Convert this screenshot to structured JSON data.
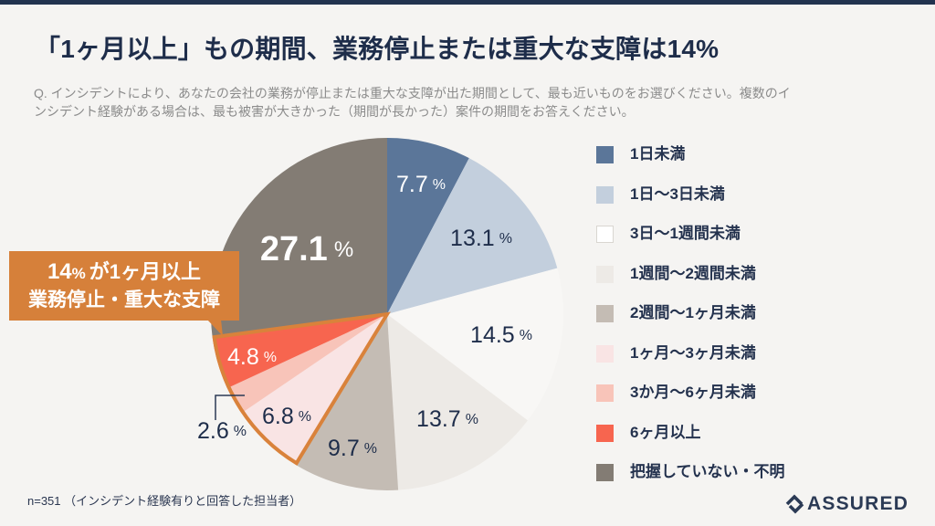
{
  "header": {
    "title": "「1ヶ月以上」もの期間、業務停止または重大な支障は14%",
    "question_lines": [
      "Q. インシデントにより、あなたの会社の業務が停止または重大な支障が出た期間として、最も近いものをお選びください。複数のイ",
      "ンシデント経験がある場合は、最も被害が大きかった（期間が長かった）案件の期間をお答えください。"
    ]
  },
  "callout": {
    "line1_num": "14",
    "line1_pct": "%",
    "line1_rest": "が1ヶ月以上",
    "line2": "業務停止・重大な支障",
    "color": "#d6803a"
  },
  "footnote": "n=351 （インシデント経験有りと回答した担当者）",
  "logo": {
    "text": "ASSURED",
    "icon": "assured-logo-icon"
  },
  "chart_data": {
    "type": "pie",
    "title": "「1ヶ月以上」もの期間、業務停止または重大な支障は14%",
    "start": "12 o'clock, clockwise",
    "categories": [
      "1日未満",
      "1日〜3日未満",
      "3日〜1週間未満",
      "1週間〜2週間未満",
      "2週間〜1ヶ月未満",
      "1ヶ月〜3ヶ月未満",
      "3か月〜6ヶ月未満",
      "6ヶ月以上",
      "把握していない・不明"
    ],
    "values": [
      7.7,
      13.1,
      14.5,
      13.7,
      9.7,
      6.8,
      2.6,
      4.8,
      27.1
    ],
    "value_labels": [
      "7.7",
      "13.1",
      "14.5",
      "13.7",
      "9.7",
      "6.8",
      "2.6",
      "4.8",
      "27.1"
    ],
    "unit": "%",
    "colors": [
      "#5b7699",
      "#c3cfdd",
      "#f8f7f5",
      "#edeae6",
      "#c4bcb4",
      "#f9e4e4",
      "#f8c4b9",
      "#f7654f",
      "#837c74"
    ],
    "label_colors": [
      "#ffffff",
      "#1e2d4a",
      "#1e2d4a",
      "#1e2d4a",
      "#1e2d4a",
      "#1e2d4a",
      "#1e2d4a",
      "#ffffff",
      "#ffffff"
    ],
    "highlight": {
      "indices": [
        5,
        6,
        7
      ],
      "total_label": "14%",
      "color": "#d9823b"
    },
    "legend_position": "right",
    "sample_size": 351
  }
}
